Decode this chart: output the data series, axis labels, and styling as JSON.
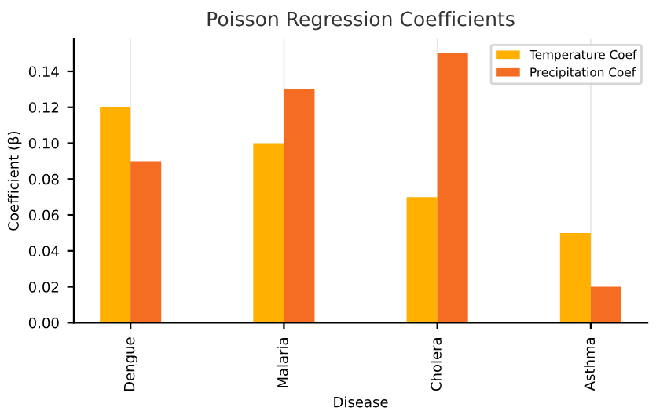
{
  "chart_data": {
    "type": "bar",
    "title": "Poisson Regression Coefficients",
    "xlabel": "Disease",
    "ylabel": "Coefficient (β)",
    "categories": [
      "Dengue",
      "Malaria",
      "Cholera",
      "Asthma"
    ],
    "series": [
      {
        "name": "Temperature Coef",
        "color": "#ffb000",
        "values": [
          0.12,
          0.1,
          0.07,
          0.05
        ]
      },
      {
        "name": "Precipitation Coef",
        "color": "#f46d22",
        "values": [
          0.09,
          0.13,
          0.15,
          0.02
        ]
      }
    ],
    "ylim": [
      0,
      0.158
    ],
    "yticks": [
      {
        "value": 0,
        "label": "0.00"
      },
      {
        "value": 0.02,
        "label": "0.02"
      },
      {
        "value": 0.04,
        "label": "0.04"
      },
      {
        "value": 0.06,
        "label": "0.06"
      },
      {
        "value": 0.08,
        "label": "0.08"
      },
      {
        "value": 0.1,
        "label": "0.10"
      },
      {
        "value": 0.12,
        "label": "0.12"
      },
      {
        "value": 0.14,
        "label": "0.14"
      }
    ],
    "grid": "x",
    "legend": "top right"
  }
}
